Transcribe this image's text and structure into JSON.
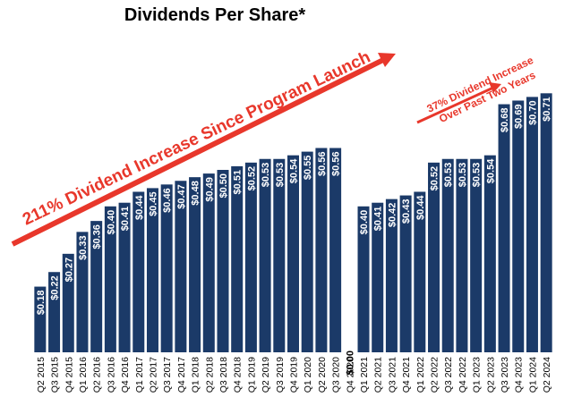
{
  "chart_data": {
    "type": "bar",
    "title": "Dividends Per Share*",
    "xlabel": "",
    "ylabel": "",
    "ylim": [
      0,
      0.8
    ],
    "categories": [
      "Q2 2015",
      "Q3 2015",
      "Q4 2015",
      "Q1 2016",
      "Q2 2016",
      "Q3 2016",
      "Q4 2016",
      "Q1 2017",
      "Q2 2017",
      "Q3 2017",
      "Q4 2017",
      "Q1 2018",
      "Q2 2018",
      "Q3 2018",
      "Q4 2018",
      "Q1 2019",
      "Q2 2019",
      "Q3 2019",
      "Q4 2019",
      "Q1 2020",
      "Q2 2020",
      "Q3 2020",
      "Q4 2020",
      "Q1 2021",
      "Q2 2021",
      "Q3 2021",
      "Q4 2021",
      "Q1 2022",
      "Q2 2022",
      "Q3 2022",
      "Q4 2022",
      "Q1 2023",
      "Q2 2023",
      "Q3 2023",
      "Q4 2023",
      "Q1 2024",
      "Q2 2024"
    ],
    "values": [
      0.18,
      0.22,
      0.27,
      0.33,
      0.36,
      0.4,
      0.41,
      0.44,
      0.45,
      0.46,
      0.47,
      0.48,
      0.49,
      0.5,
      0.51,
      0.52,
      0.53,
      0.53,
      0.54,
      0.55,
      0.56,
      0.56,
      0.0,
      0.4,
      0.41,
      0.42,
      0.43,
      0.44,
      0.52,
      0.53,
      0.53,
      0.53,
      0.54,
      0.68,
      0.69,
      0.7,
      0.71
    ],
    "labels": [
      "$0.18",
      "$0.22",
      "$0.27",
      "$0.33",
      "$0.36",
      "$0.40",
      "$0.41",
      "$0.44",
      "$0.45",
      "$0.46",
      "$0.47",
      "$0.48",
      "$0.49",
      "$0.50",
      "$0.51",
      "$0.52",
      "$0.53",
      "$0.53",
      "$0.54",
      "$0.55",
      "$0.56",
      "$0.56",
      "$0.00",
      "$0.40",
      "$0.41",
      "$0.42",
      "$0.43",
      "$0.44",
      "$0.52",
      "$0.53",
      "$0.53",
      "$0.53",
      "$0.54",
      "$0.68",
      "$0.69",
      "$0.70",
      "$0.71"
    ],
    "bar_color": "#1b3a68",
    "annotation_color": "#e8372b",
    "annotations": [
      {
        "name": "annotation-program-launch",
        "lines": [
          "211% Dividend Increase Since Program Launch"
        ]
      },
      {
        "name": "annotation-two-years",
        "lines": [
          "37% Dividend Increase",
          "Over Past Two Years"
        ]
      }
    ],
    "grid": false,
    "legend": "none"
  }
}
